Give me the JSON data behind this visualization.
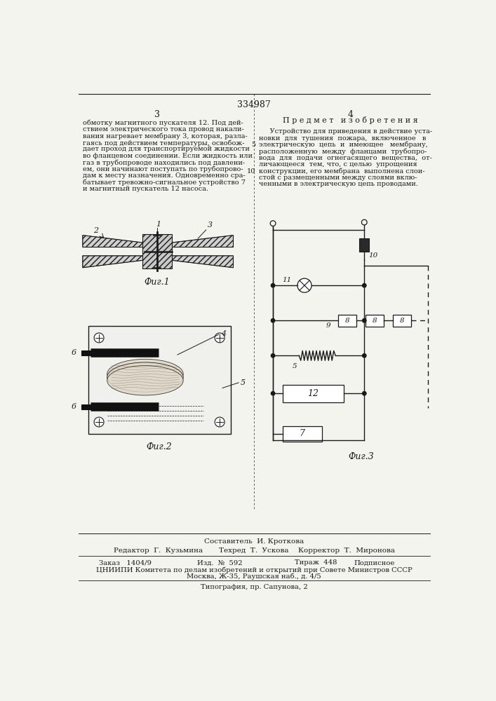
{
  "patent_number": "334987",
  "page_left": "3",
  "page_right": "4",
  "left_text": "обмотку магнитного пускателя 12. Под дей-\nствием электрического тока провод накали-\nвания нагревает мембрану 3, которая, разла-\nгаясь под действием температуры, освобож-\nдает проход для транспортируемой жидкости\nво фланцевом соединении. Если жидкость или\nгаз в трубопроводе находились под давлени-\nем, они начинают поступать по трубопрово-\nдам к месту назначения. Одновременно сра-\nбатывает тревожно-сигнальное устройство 7\nи магнитный пускатель 12 насоса.",
  "right_title": "П р е д м е т   и з о б р е т е н и я",
  "right_text_lines": [
    "     Устройство для приведения в действие уста-",
    "новки  для  тушения  пожара,  включенное   в",
    "электрическую  цепь  и  имеющее   мембрану,",
    "расположенную  между  фланцами  трубопро-",
    "вода  для  подачи  огнегасящего  вещества,  от-",
    "личающееся  тем, что, с целью  упрощения",
    "конструкции, его мембрана  выполнена слои-",
    "стой с размещенными между слоями вклю-",
    "ченными в электрическую цепь проводами."
  ],
  "right_line_numbers": [
    "",
    "",
    "5",
    "",
    "",
    "",
    "10",
    "",
    ""
  ],
  "fig1_label": "Фиг.1",
  "fig2_label": "Фиг.2",
  "fig3_label": "Фиг.3",
  "footer_composer": "Составитель  И. Кроткова",
  "footer_editor": "Редактор  Г.  Кузьмина",
  "footer_tech": "Техред  Т.  Ускова",
  "footer_corrector": "Корректор  Т.  Миронова",
  "footer_order": "Заказ   1404/9",
  "footer_izd": "Изд.  №  592",
  "footer_tiraz": "Тираж  448",
  "footer_podpisnoe": "Подписное",
  "footer_tsniip": "ЦНИИПИ Комитета по делам изобретений и открытий при Совете Министров СССР",
  "footer_moscow": "Москва, Ж-35, Раушская наб., д. 4/5",
  "footer_tipog": "Типография, пр. Сапунова, 2",
  "bg_color": "#f4f4ef",
  "text_color": "#1a1a1a",
  "line_color": "#1a1a1a"
}
